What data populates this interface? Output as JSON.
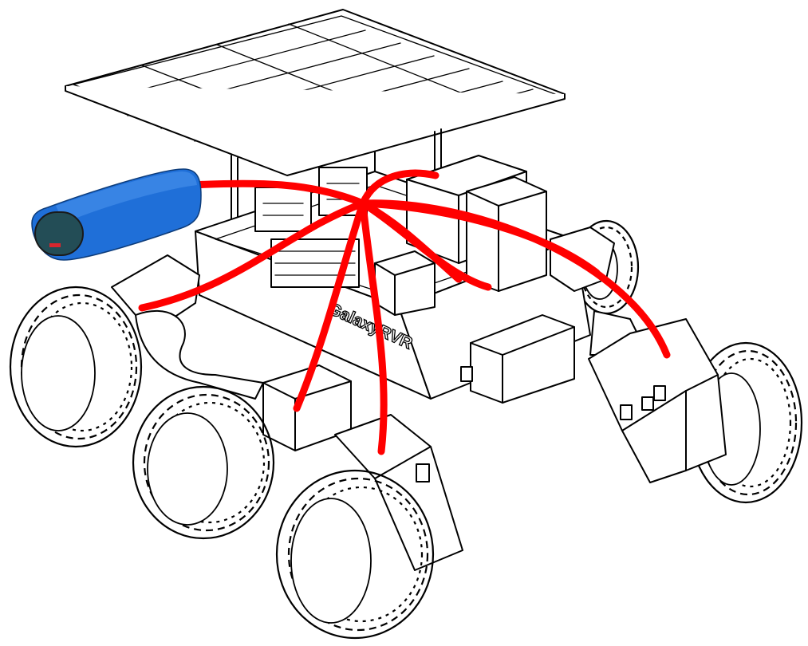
{
  "diagram": {
    "body_label": "GalaxyRVR",
    "colors": {
      "wires": "#ff0000",
      "battery": "#1f6fd8",
      "battery_highlight": "#4a93ec",
      "battery_cap": "#234d56",
      "battery_terminal": "#d8262e",
      "outline": "#000000",
      "background": "#ffffff"
    },
    "components": [
      "solar-panel",
      "battery-pack",
      "wiring-harness",
      "rover-chassis",
      "electronics-boards",
      "motor-housings",
      "rocker-arms",
      "wheels"
    ],
    "wheel_count": 6
  }
}
